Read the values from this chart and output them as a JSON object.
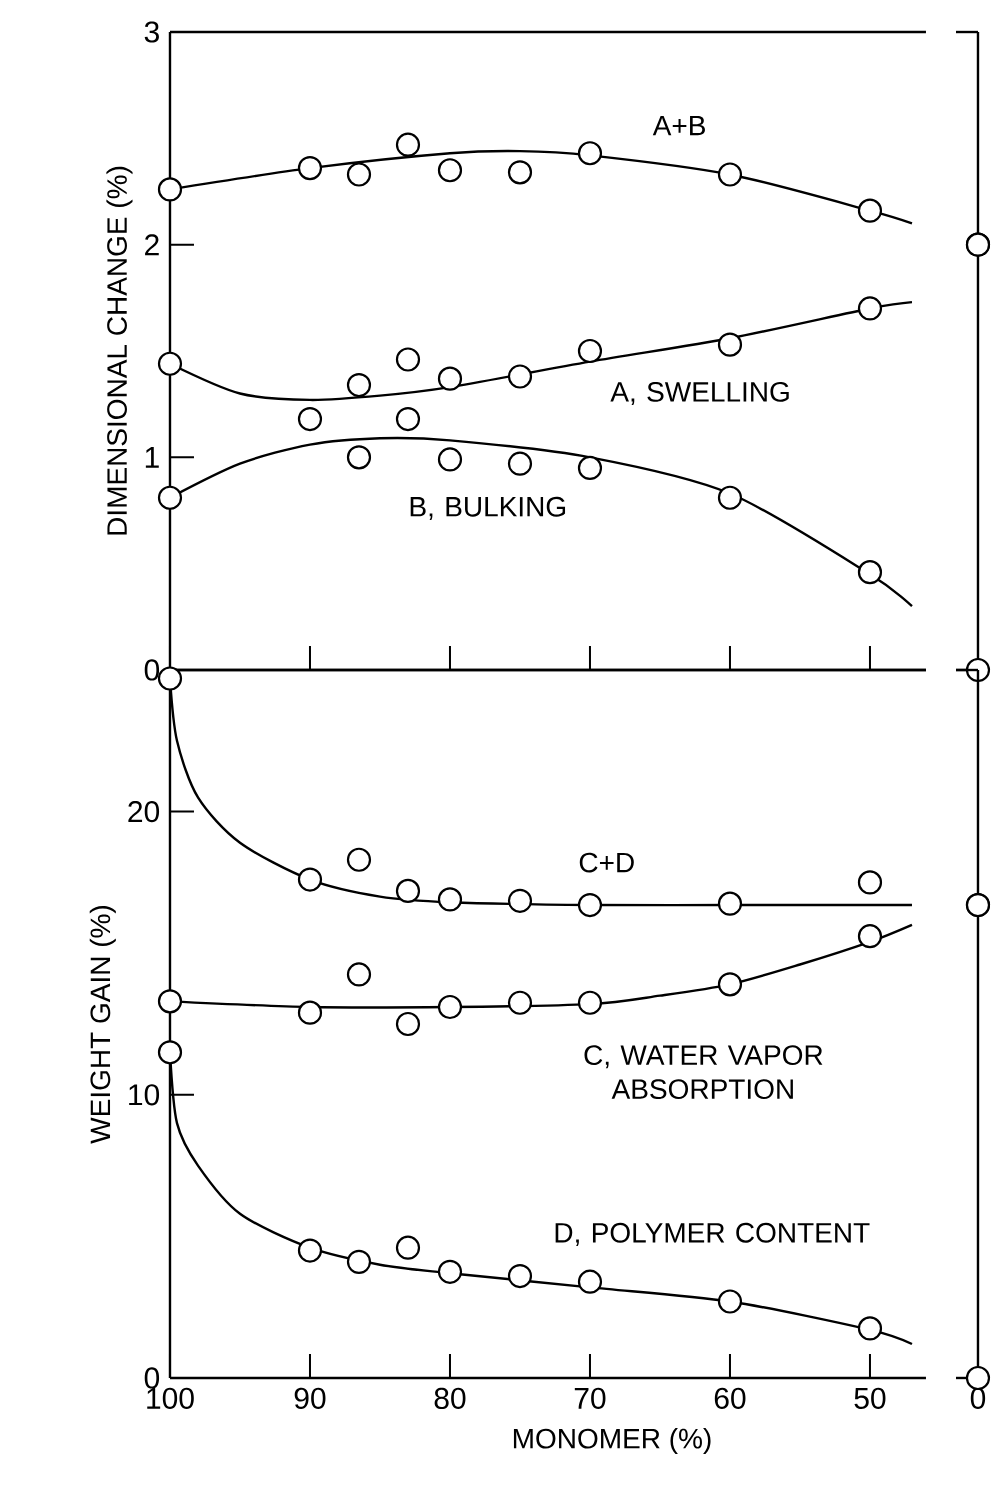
{
  "chart_data": [
    {
      "type": "scatter",
      "ylabel": "DIMENSIONAL CHANGE (%)",
      "xlim": [
        100,
        46
      ],
      "ylim": [
        0,
        3
      ],
      "xticks": [
        100,
        90,
        80,
        70,
        60,
        50
      ],
      "yticks": [
        0,
        1,
        2,
        3
      ],
      "tick_labels": "y",
      "line_style": "solid",
      "series": [
        {
          "color": "#000000",
          "marker": "circle",
          "x": [
            100,
            90,
            86.5,
            83,
            80,
            75,
            70,
            60,
            50
          ],
          "values": [
            2.26,
            2.36,
            2.33,
            2.47,
            2.35,
            2.34,
            2.43,
            2.33,
            2.16
          ]
        },
        {
          "color": "#000000",
          "marker": "circle",
          "x": [
            100,
            90,
            86.5,
            83,
            80,
            75,
            70,
            60,
            50
          ],
          "values": [
            1.44,
            1.18,
            1.34,
            1.46,
            1.37,
            1.38,
            1.5,
            1.53,
            1.7
          ]
        },
        {
          "color": "#000000",
          "marker": "circle",
          "x": [
            100,
            86.5,
            83,
            80,
            75,
            70,
            60,
            50
          ],
          "values": [
            0.81,
            1.0,
            1.18,
            0.99,
            0.97,
            0.95,
            0.81,
            0.46
          ]
        },
        {
          "type": "line",
          "color": "#000000",
          "marker": "none",
          "x": [
            100,
            90,
            80,
            75,
            70,
            60,
            50,
            47
          ],
          "values": [
            2.26,
            2.36,
            2.43,
            2.44,
            2.42,
            2.33,
            2.16,
            2.1
          ]
        },
        {
          "type": "line",
          "color": "#000000",
          "marker": "none",
          "x": [
            100,
            95,
            90,
            85,
            80,
            70,
            60,
            50,
            47
          ],
          "values": [
            1.44,
            1.3,
            1.27,
            1.29,
            1.33,
            1.45,
            1.56,
            1.7,
            1.73
          ]
        },
        {
          "type": "line",
          "color": "#000000",
          "marker": "none",
          "x": [
            100,
            95,
            90,
            85,
            80,
            70,
            60,
            50,
            47
          ],
          "values": [
            0.81,
            0.97,
            1.06,
            1.09,
            1.08,
            1.0,
            0.83,
            0.45,
            0.3
          ]
        }
      ],
      "annotations": [
        "A+B",
        "A, SWELLING",
        "B, BULKING"
      ]
    },
    {
      "type": "scatter",
      "categories": [
        "0"
      ],
      "ylim": [
        0,
        3
      ],
      "tick_labels": false,
      "series": [
        {
          "color": "#000000",
          "marker": "circle",
          "values": [
            2.0
          ]
        },
        {
          "color": "#000000",
          "marker": "circle",
          "values": [
            2.0
          ]
        },
        {
          "color": "#000000",
          "marker": "circle",
          "values": [
            0.0
          ]
        }
      ]
    },
    {
      "type": "scatter",
      "xlabel": "MONOMER (%)",
      "ylabel": "WEIGHT GAIN (%)",
      "xlim": [
        100,
        46
      ],
      "ylim": [
        0,
        25
      ],
      "xticks": [
        100,
        90,
        80,
        70,
        60,
        50
      ],
      "yticks": [
        0,
        10,
        20
      ],
      "line_style": "solid",
      "series": [
        {
          "color": "#000000",
          "marker": "circle",
          "x": [
            100,
            90,
            86.5,
            83,
            80,
            75,
            70,
            60,
            50
          ],
          "values": [
            24.7,
            17.6,
            18.3,
            17.2,
            16.9,
            16.85,
            16.7,
            16.75,
            17.5
          ]
        },
        {
          "color": "#000000",
          "marker": "circle",
          "x": [
            100,
            90,
            86.5,
            83,
            80,
            75,
            70,
            60,
            50
          ],
          "values": [
            13.3,
            12.9,
            14.25,
            12.5,
            13.1,
            13.25,
            13.25,
            13.9,
            15.6
          ]
        },
        {
          "color": "#000000",
          "marker": "circle",
          "x": [
            100,
            90,
            86.5,
            83,
            80,
            75,
            70,
            60,
            50
          ],
          "values": [
            11.5,
            4.5,
            4.1,
            4.6,
            3.75,
            3.6,
            3.4,
            2.7,
            1.75
          ]
        },
        {
          "type": "line",
          "color": "#000000",
          "marker": "none",
          "x": [
            100,
            99.5,
            98,
            95,
            90,
            85,
            80,
            70,
            60,
            47
          ],
          "values": [
            24.7,
            22.5,
            20.5,
            18.9,
            17.6,
            17.0,
            16.8,
            16.7,
            16.7,
            16.7
          ]
        },
        {
          "type": "line",
          "color": "#000000",
          "marker": "none",
          "x": [
            100,
            90,
            80,
            70,
            65,
            60,
            55,
            50,
            47
          ],
          "values": [
            13.3,
            13.1,
            13.1,
            13.2,
            13.5,
            13.9,
            14.6,
            15.4,
            16.0
          ]
        },
        {
          "type": "line",
          "color": "#000000",
          "marker": "none",
          "x": [
            100,
            99.5,
            98,
            95,
            90,
            85,
            80,
            70,
            60,
            50,
            47
          ],
          "values": [
            11.5,
            9.0,
            7.5,
            5.8,
            4.6,
            4.0,
            3.7,
            3.2,
            2.7,
            1.7,
            1.2
          ]
        }
      ],
      "annotations": [
        "C+D",
        "C, WATER VAPOR ABSORPTION",
        "D, POLYMER CONTENT"
      ]
    },
    {
      "type": "scatter",
      "categories": [
        "0"
      ],
      "ylim": [
        0,
        25
      ],
      "tick_labels": "x",
      "series": [
        {
          "color": "#000000",
          "marker": "circle",
          "values": [
            16.7
          ]
        },
        {
          "color": "#000000",
          "marker": "circle",
          "values": [
            16.7
          ]
        },
        {
          "color": "#000000",
          "marker": "circle",
          "values": [
            0.0
          ]
        }
      ]
    }
  ]
}
